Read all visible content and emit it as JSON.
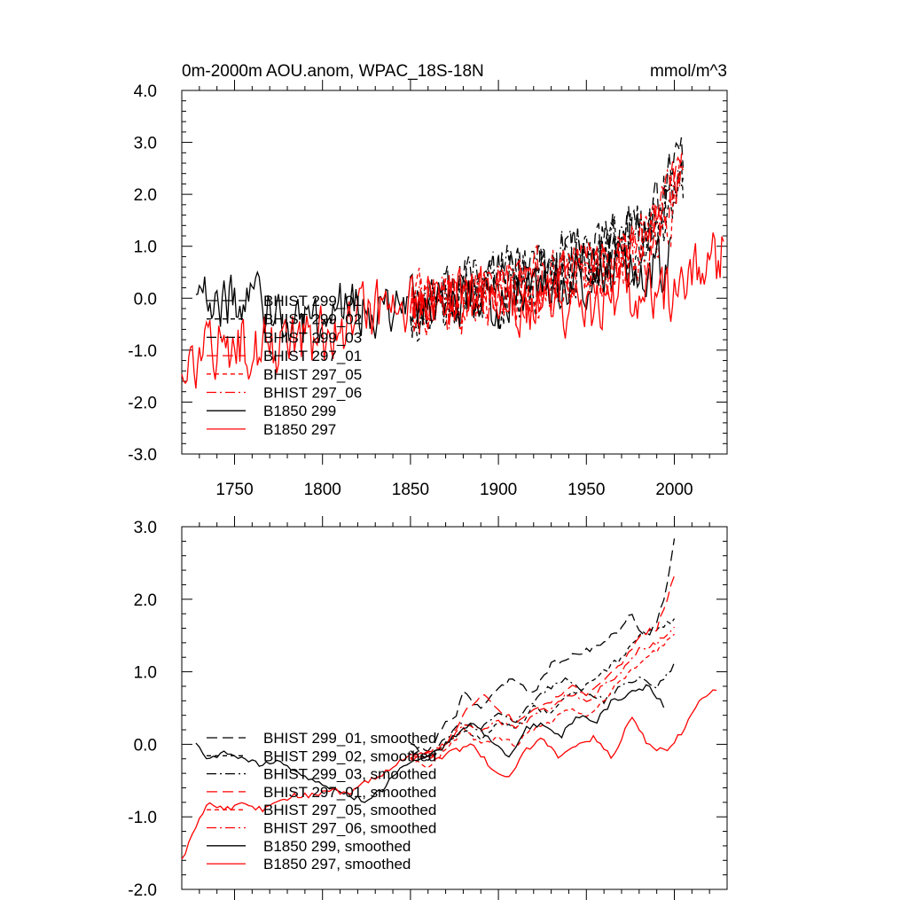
{
  "chart_data": [
    {
      "type": "line",
      "title": "0m-2000m AOU.anom, WPAC_18S-18N",
      "units": "mmol/m^3",
      "xlabel": "",
      "ylabel": "",
      "xlim": [
        1720,
        2030
      ],
      "ylim": [
        -3.0,
        4.0
      ],
      "x_ticks": [
        1750,
        1800,
        1850,
        1900,
        1950,
        2000
      ],
      "y_ticks": [
        -3.0,
        -2.0,
        -1.0,
        0.0,
        1.0,
        2.0,
        3.0,
        4.0
      ],
      "x_tick_labels": [
        "1750",
        "1800",
        "1850",
        "1900",
        "1950",
        "2000"
      ],
      "y_tick_labels": [
        "-3.0",
        "-2.0",
        "-1.0",
        "0.0",
        "1.0",
        "2.0",
        "3.0",
        "4.0"
      ],
      "legend_position": "lower-left",
      "series": [
        {
          "name": "BHIST 299_01",
          "color": "#000000",
          "dash": "long-dash",
          "x_range": [
            1850,
            2005
          ],
          "trend": [
            [
              1850,
              -0.1
            ],
            [
              1900,
              0.3
            ],
            [
              1950,
              0.8
            ],
            [
              1985,
              1.3
            ],
            [
              2005,
              2.9
            ]
          ],
          "amplitude": 0.55
        },
        {
          "name": "BHIST 299_02",
          "color": "#000000",
          "dash": "short-dash",
          "x_range": [
            1850,
            2005
          ],
          "trend": [
            [
              1850,
              -0.2
            ],
            [
              1900,
              0.1
            ],
            [
              1950,
              0.7
            ],
            [
              1985,
              1.1
            ],
            [
              2005,
              2.0
            ]
          ],
          "amplitude": 0.55
        },
        {
          "name": "BHIST 299_03",
          "color": "#000000",
          "dash": "dash-dot",
          "x_range": [
            1850,
            2005
          ],
          "trend": [
            [
              1850,
              -0.2
            ],
            [
              1900,
              0.3
            ],
            [
              1950,
              0.9
            ],
            [
              1985,
              1.4
            ],
            [
              2005,
              2.6
            ]
          ],
          "amplitude": 0.55
        },
        {
          "name": "BHIST 297_01",
          "color": "#ff0000",
          "dash": "long-dash",
          "x_range": [
            1850,
            2005
          ],
          "trend": [
            [
              1850,
              -0.2
            ],
            [
              1900,
              0.1
            ],
            [
              1950,
              0.6
            ],
            [
              1985,
              1.1
            ],
            [
              2005,
              2.5
            ]
          ],
          "amplitude": 0.55
        },
        {
          "name": "BHIST 297_05",
          "color": "#ff0000",
          "dash": "short-dash",
          "x_range": [
            1850,
            2005
          ],
          "trend": [
            [
              1850,
              -0.2
            ],
            [
              1900,
              0.0
            ],
            [
              1950,
              0.4
            ],
            [
              1985,
              1.0
            ],
            [
              2005,
              2.1
            ]
          ],
          "amplitude": 0.55
        },
        {
          "name": "BHIST 297_06",
          "color": "#ff0000",
          "dash": "dash-dot",
          "x_range": [
            1850,
            2005
          ],
          "trend": [
            [
              1850,
              -0.2
            ],
            [
              1900,
              0.1
            ],
            [
              1950,
              0.5
            ],
            [
              1985,
              1.1
            ],
            [
              2005,
              2.3
            ]
          ],
          "amplitude": 0.55
        },
        {
          "name": "B1850 299",
          "color": "#000000",
          "dash": "solid",
          "x_range": [
            1728,
            1998
          ],
          "trend": [
            [
              1728,
              0.0
            ],
            [
              1800,
              -0.3
            ],
            [
              1850,
              -0.1
            ],
            [
              1900,
              -0.1
            ],
            [
              1950,
              0.4
            ],
            [
              1998,
              0.7
            ]
          ],
          "amplitude": 0.5
        },
        {
          "name": "B1850 297",
          "color": "#ff0000",
          "dash": "solid",
          "x_range": [
            1720,
            2028
          ],
          "trend": [
            [
              1720,
              -1.6
            ],
            [
              1740,
              -1.0
            ],
            [
              1800,
              -0.7
            ],
            [
              1850,
              0.0
            ],
            [
              1900,
              0.0
            ],
            [
              1950,
              -0.1
            ],
            [
              2000,
              0.2
            ],
            [
              2028,
              0.8
            ]
          ],
          "amplitude": 0.55
        }
      ]
    },
    {
      "type": "line",
      "title": "",
      "xlabel": "",
      "ylabel": "",
      "xlim": [
        1720,
        2030
      ],
      "ylim": [
        -2.0,
        3.0
      ],
      "x_ticks": [
        1750,
        1800,
        1850,
        1900,
        1950,
        2000
      ],
      "y_ticks": [
        -2.0,
        -1.0,
        0.0,
        1.0,
        2.0,
        3.0
      ],
      "y_tick_labels": [
        "-2.0",
        "-1.0",
        "0.0",
        "1.0",
        "2.0",
        "3.0"
      ],
      "legend_position": "lower-left",
      "series": [
        {
          "name": "BHIST 299_01, smoothed",
          "color": "#000000",
          "dash": "long-dash",
          "x": [
            1850,
            1860,
            1870,
            1876,
            1880,
            1890,
            1900,
            1910,
            1920,
            1930,
            1940,
            1950,
            1960,
            1970,
            1975,
            1980,
            1985,
            1990,
            1995,
            2000
          ],
          "y": [
            0.0,
            -0.1,
            0.3,
            0.4,
            0.7,
            0.5,
            0.8,
            0.9,
            0.7,
            1.1,
            1.2,
            1.3,
            1.4,
            1.6,
            1.8,
            1.6,
            1.5,
            1.7,
            2.1,
            2.8
          ]
        },
        {
          "name": "BHIST 299_02, smoothed",
          "color": "#000000",
          "dash": "short-dash",
          "x": [
            1850,
            1860,
            1870,
            1880,
            1890,
            1900,
            1910,
            1920,
            1930,
            1940,
            1950,
            1960,
            1970,
            1980,
            1990,
            2000
          ],
          "y": [
            0.0,
            -0.2,
            0.0,
            0.2,
            0.1,
            0.3,
            0.2,
            0.5,
            0.4,
            0.7,
            0.8,
            1.0,
            1.2,
            1.5,
            1.6,
            1.7
          ]
        },
        {
          "name": "BHIST 299_03, smoothed",
          "color": "#000000",
          "dash": "dash-dot",
          "x": [
            1850,
            1860,
            1870,
            1880,
            1890,
            1900,
            1910,
            1920,
            1930,
            1940,
            1950,
            1960,
            1970,
            1980,
            1990,
            2000
          ],
          "y": [
            -0.1,
            -0.2,
            0.1,
            0.3,
            0.2,
            0.4,
            0.3,
            0.6,
            0.8,
            0.9,
            0.7,
            0.6,
            0.8,
            0.9,
            0.8,
            1.1
          ]
        },
        {
          "name": "BHIST 297_01, smoothed",
          "color": "#ff0000",
          "dash": "long-dash",
          "x": [
            1850,
            1860,
            1870,
            1880,
            1890,
            1900,
            1910,
            1920,
            1930,
            1940,
            1950,
            1960,
            1970,
            1980,
            1990,
            2000
          ],
          "y": [
            -0.2,
            -0.1,
            0.0,
            0.4,
            0.7,
            0.5,
            0.3,
            0.5,
            0.6,
            0.8,
            0.7,
            0.9,
            1.1,
            1.5,
            1.6,
            2.3
          ]
        },
        {
          "name": "BHIST 297_05, smoothed",
          "color": "#ff0000",
          "dash": "short-dash",
          "x": [
            1850,
            1860,
            1870,
            1880,
            1890,
            1900,
            1910,
            1920,
            1930,
            1940,
            1950,
            1960,
            1970,
            1980,
            1990,
            2000
          ],
          "y": [
            -0.2,
            -0.3,
            -0.1,
            0.2,
            0.0,
            0.1,
            0.0,
            0.2,
            0.3,
            0.5,
            0.4,
            0.6,
            0.9,
            1.1,
            1.3,
            1.5
          ]
        },
        {
          "name": "BHIST 297_06, smoothed",
          "color": "#ff0000",
          "dash": "dash-dot",
          "x": [
            1850,
            1860,
            1870,
            1880,
            1890,
            1900,
            1910,
            1920,
            1930,
            1940,
            1950,
            1960,
            1970,
            1980,
            1990,
            2000
          ],
          "y": [
            -0.2,
            -0.2,
            0.0,
            0.3,
            0.2,
            0.3,
            0.2,
            0.4,
            0.5,
            0.7,
            0.6,
            0.8,
            1.0,
            1.3,
            1.4,
            1.6
          ]
        },
        {
          "name": "B1850 299, smoothed",
          "color": "#000000",
          "dash": "solid",
          "x": [
            1728,
            1735,
            1745,
            1755,
            1765,
            1775,
            1785,
            1795,
            1805,
            1815,
            1825,
            1835,
            1845,
            1855,
            1865,
            1875,
            1885,
            1895,
            1905,
            1915,
            1925,
            1935,
            1945,
            1955,
            1965,
            1975,
            1985,
            1995
          ],
          "y": [
            0.0,
            -0.2,
            -0.1,
            -0.2,
            -0.3,
            -0.2,
            -0.4,
            -0.5,
            -0.6,
            -0.7,
            -0.8,
            -0.6,
            -0.3,
            -0.2,
            -0.1,
            0.1,
            0.3,
            0.1,
            -0.2,
            0.2,
            0.3,
            0.1,
            0.4,
            0.3,
            0.6,
            0.7,
            0.8,
            0.5
          ]
        },
        {
          "name": "B1850 297, smoothed",
          "color": "#ff0000",
          "dash": "solid",
          "x": [
            1720,
            1725,
            1730,
            1735,
            1745,
            1755,
            1765,
            1775,
            1785,
            1795,
            1805,
            1815,
            1825,
            1835,
            1845,
            1855,
            1865,
            1875,
            1885,
            1895,
            1905,
            1915,
            1925,
            1935,
            1945,
            1955,
            1965,
            1975,
            1985,
            1995,
            2005,
            2015,
            2025
          ],
          "y": [
            -1.6,
            -1.3,
            -1.0,
            -0.8,
            -0.9,
            -0.8,
            -0.9,
            -0.8,
            -0.7,
            -0.7,
            -0.6,
            -0.7,
            -0.5,
            -0.4,
            -0.2,
            -0.1,
            -0.2,
            -0.1,
            0.0,
            -0.3,
            -0.5,
            -0.1,
            0.1,
            -0.2,
            0.0,
            0.1,
            -0.2,
            0.4,
            0.0,
            -0.1,
            0.2,
            0.6,
            0.8
          ]
        }
      ]
    }
  ]
}
